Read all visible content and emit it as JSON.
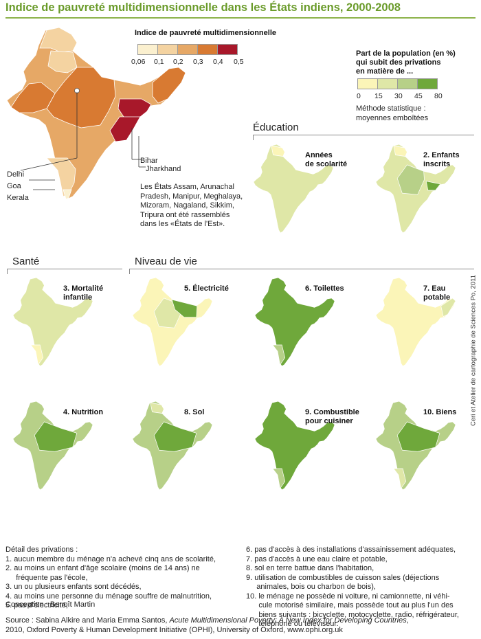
{
  "title": "Indice de pauvreté multidimensionnelle dans les États indiens, 2000-2008",
  "mpi_legend": {
    "title": "Indice de pauvreté multidimensionnelle",
    "ticks": [
      "0,06",
      "0,1",
      "0,2",
      "0,3",
      "0,4",
      "0,5"
    ],
    "colors": [
      "#fbf0cf",
      "#f4d3a1",
      "#e6a866",
      "#d87a32",
      "#a8182a"
    ]
  },
  "share_legend": {
    "title_lines": [
      "Part de la population (en %)",
      "qui subit des privations",
      "en matière de ..."
    ],
    "ticks": [
      "0",
      "15",
      "30",
      "45",
      "80"
    ],
    "colors": [
      "#fbf5b8",
      "#dfe7a7",
      "#b7d088",
      "#6fa83b"
    ],
    "method_lines": [
      "Méthode statistique :",
      "moyennes emboîtées"
    ]
  },
  "callouts": {
    "bihar": "Bihar",
    "jharkhand": "Jharkhand",
    "delhi": "Delhi",
    "goa": "Goa",
    "kerala": "Kerala"
  },
  "east_note_lines": [
    "Les États Assam, Arunachal",
    "Pradesh, Manipur, Meghalaya,",
    "Mizoram, Nagaland, Sikkim,",
    "Tripura ont été rassemblés",
    "dans les «États de l'Est»."
  ],
  "sections": {
    "education": "Éducation",
    "sante": "Santé",
    "niveau": "Niveau de vie"
  },
  "maps": {
    "education_years": {
      "label_lines": [
        "Années",
        "de scolarité"
      ],
      "fill": "#dfe7a7"
    },
    "enrolled": {
      "label_lines": [
        "2. Enfants",
        "inscrits"
      ],
      "fill": "#dfe7a7"
    },
    "mortality": {
      "label_lines": [
        "3. Mortalité",
        "infantile"
      ],
      "fill": "#dfe7a7"
    },
    "electricity": {
      "label_lines": [
        "5. Électricité"
      ],
      "fill": "#dfe7a7"
    },
    "toilets": {
      "label_lines": [
        "6. Toilettes"
      ],
      "fill": "#6fa83b"
    },
    "water": {
      "label_lines": [
        "7. Eau",
        "potable"
      ],
      "fill": "#fbf5b8"
    },
    "nutrition": {
      "label_lines": [
        "4. Nutrition"
      ],
      "fill": "#b7d088"
    },
    "floor": {
      "label_lines": [
        "8. Sol"
      ],
      "fill": "#b7d088"
    },
    "fuel": {
      "label_lines": [
        "9. Combustible",
        "pour cuisiner"
      ],
      "fill": "#6fa83b"
    },
    "assets": {
      "label_lines": [
        "10. Biens"
      ],
      "fill": "#b7d088"
    }
  },
  "credit_vertical": "Ceri et Atelier de cartographie de Sciences Po, 2011",
  "notes": {
    "heading": "Détail des privations :",
    "left_lines": [
      "1. aucun membre du ménage n'a achevé cinq ans de scolarité,",
      "2. au moins un enfant d'âge scolaire (moins de 14 ans) ne",
      "     fréquente pas l'école,",
      "3. un ou plusieurs enfants sont décédés,",
      "4. au moins une personne du ménage souffre de malnutrition,",
      "5. pas d'électricité,"
    ],
    "right_lines": [
      "6. pas d'accès à des installations d'assainissement adéquates,",
      "7. pas d'accès à une eau claire et potable,",
      "8. sol en terre battue dans l'habitation,",
      "9. utilisation de combustibles de cuisson sales (déjections",
      "     animales, bois ou charbon de bois),",
      "10. le ménage ne possède ni voiture, ni camionnette, ni véhi-",
      "      cule motorisé similaire, mais possède tout au plus l'un des",
      "      biens suivants : bicyclette, motocyclette, radio, réfrigérateur,",
      "      téléphone ou téléviseur."
    ]
  },
  "conception": "Conception : Benoît Martin",
  "source": {
    "prefix": "Source : Sabina Alkire and Maria Emma Santos, ",
    "italic": "Acute Multidimensional Poverty: A New Index for Developing Countries",
    "suffix": ",",
    "line2": "2010, Oxford Poverty & Human Development Initiative (OPHI), University of Oxford, www.ophi.org.uk"
  }
}
